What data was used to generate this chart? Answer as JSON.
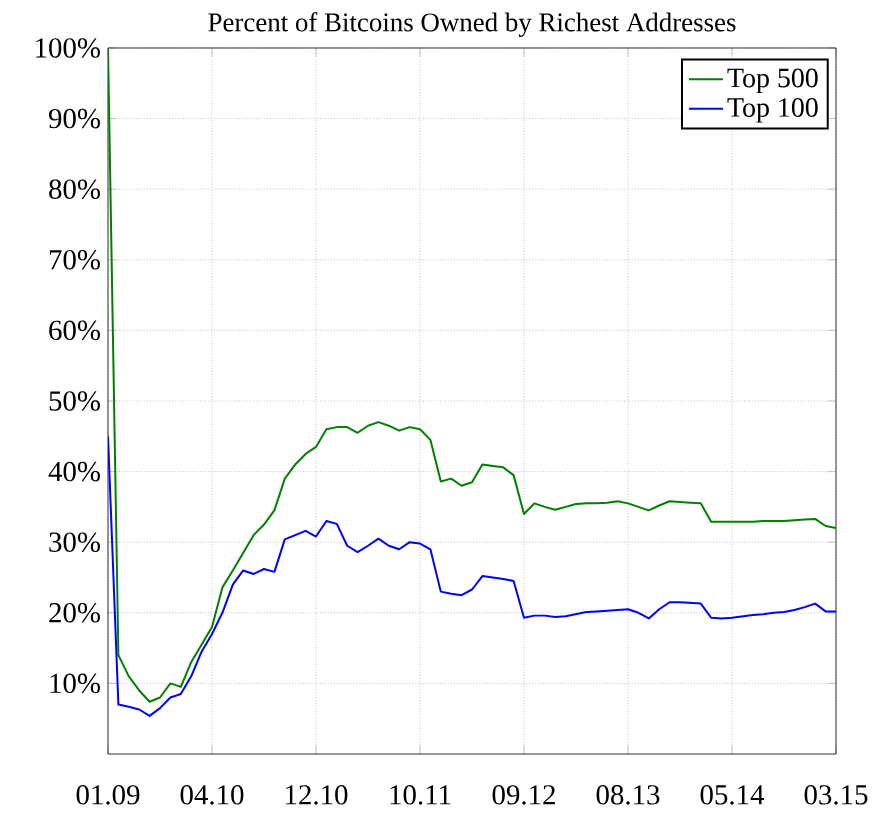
{
  "chart_data": {
    "type": "line",
    "title": "Percent of Bitcoins Owned by Richest Addresses",
    "categories": [
      "01.09",
      null,
      null,
      null,
      null,
      null,
      null,
      null,
      null,
      null,
      "04.10",
      null,
      null,
      null,
      null,
      null,
      null,
      null,
      null,
      null,
      "12.10",
      null,
      null,
      null,
      null,
      null,
      null,
      null,
      null,
      null,
      "10.11",
      null,
      null,
      null,
      null,
      null,
      null,
      null,
      null,
      null,
      "09.12",
      null,
      null,
      null,
      null,
      null,
      null,
      null,
      null,
      null,
      "08.13",
      null,
      null,
      null,
      null,
      null,
      null,
      null,
      null,
      null,
      "05.14",
      null,
      null,
      null,
      null,
      null,
      null,
      null,
      null,
      null,
      "03.15"
    ],
    "ylim": [
      0,
      100
    ],
    "yticks": [
      {
        "value": 10,
        "label": "10%"
      },
      {
        "value": 20,
        "label": "20%"
      },
      {
        "value": 30,
        "label": "30%"
      },
      {
        "value": 40,
        "label": "40%"
      },
      {
        "value": 50,
        "label": "50%"
      },
      {
        "value": 60,
        "label": "60%"
      },
      {
        "value": 70,
        "label": "70%"
      },
      {
        "value": 80,
        "label": "80%"
      },
      {
        "value": 90,
        "label": "90%"
      },
      {
        "value": 100,
        "label": "100%"
      }
    ],
    "grid": true,
    "legend": "top right",
    "line_style": "solid",
    "series": [
      {
        "name": "Top 500",
        "color": "#008000",
        "values": [
          100,
          14,
          11,
          9,
          7.4,
          8,
          10,
          9.5,
          13,
          15.5,
          18,
          23.6,
          26,
          28.5,
          31,
          32.5,
          34.5,
          39,
          41,
          42.5,
          43.5,
          46,
          46.3,
          46.3,
          45.5,
          46.5,
          47,
          46.5,
          45.8,
          46.3,
          46,
          44.5,
          38.6,
          39,
          38,
          38.5,
          41,
          40.8,
          40.6,
          39.5,
          34,
          35.5,
          35,
          34.6,
          35,
          35.4,
          35.5,
          35.5,
          35.6,
          35.8,
          35.5,
          35,
          34.5,
          35.2,
          35.8,
          35.7,
          35.6,
          35.5,
          32.9,
          32.9,
          32.9,
          32.9,
          32.9,
          33,
          33,
          33,
          33.1,
          33.2,
          33.3,
          32.3,
          32
        ]
      },
      {
        "name": "Top 100",
        "color": "#0000ff",
        "values": [
          45,
          7,
          6.7,
          6.3,
          5.4,
          6.5,
          8,
          8.5,
          11,
          14.5,
          17,
          20,
          24,
          26,
          25.5,
          26.2,
          25.8,
          30.4,
          31,
          31.6,
          30.8,
          33,
          32.6,
          29.5,
          28.6,
          29.5,
          30.5,
          29.5,
          29,
          30,
          29.8,
          29,
          23,
          22.7,
          22.5,
          23.3,
          25.2,
          25,
          24.8,
          24.5,
          19.3,
          19.6,
          19.6,
          19.4,
          19.5,
          19.8,
          20.1,
          20.2,
          20.3,
          20.4,
          20.5,
          20,
          19.2,
          20.5,
          21.5,
          21.5,
          21.4,
          21.3,
          19.3,
          19.2,
          19.3,
          19.5,
          19.7,
          19.8,
          20,
          20.1,
          20.4,
          20.8,
          21.3,
          20.2,
          20.2
        ]
      }
    ]
  }
}
